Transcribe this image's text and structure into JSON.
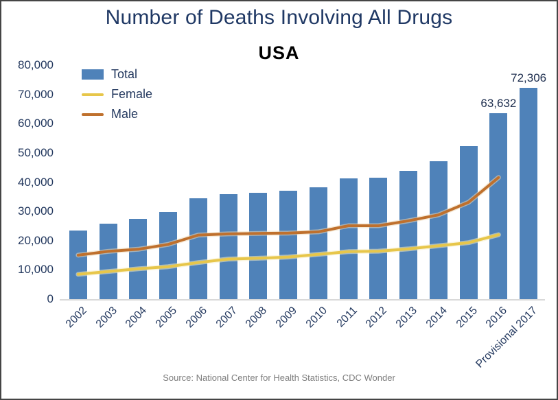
{
  "header": {
    "title": "Number of Deaths Involving All Drugs",
    "subtitle": "USA",
    "title_color": "#1f3864"
  },
  "footer": {
    "source": "Source: National Center for Health Statistics, CDC Wonder"
  },
  "colors": {
    "bar": "#4f82b9",
    "female_line": "#e7c64a",
    "female_halo": "#f6ecc2",
    "male_line": "#bf702d",
    "male_halo": "#ecd9b8",
    "axis_text": "#24395f",
    "axis_line": "#d9d9d9",
    "frame_border": "#454545"
  },
  "legend": {
    "position": "top-left-inside",
    "items": [
      {
        "label": "Total",
        "type": "bar",
        "color": "#4f82b9"
      },
      {
        "label": "Female",
        "type": "line",
        "color": "#e7c64a",
        "halo": "#f6ecc2"
      },
      {
        "label": "Male",
        "type": "line",
        "color": "#bf702d",
        "halo": "#ecd9b8"
      }
    ]
  },
  "chart_data": {
    "type": "bar",
    "title": "Number of Deaths Involving All Drugs",
    "subtitle": "USA",
    "xlabel": "",
    "ylabel": "",
    "ylim": [
      0,
      80000
    ],
    "y_tick_step": 10000,
    "y_tick_labels": [
      "0",
      "10,000",
      "20,000",
      "30,000",
      "40,000",
      "50,000",
      "60,000",
      "70,000",
      "80,000"
    ],
    "grid": false,
    "categories": [
      "2002",
      "2003",
      "2004",
      "2005",
      "2006",
      "2007",
      "2008",
      "2009",
      "2010",
      "2011",
      "2012",
      "2013",
      "2014",
      "2015",
      "2016",
      "Provisional 2017"
    ],
    "series": [
      {
        "name": "Total",
        "type": "bar",
        "color": "#4f82b9",
        "values": [
          23518,
          25785,
          27424,
          29813,
          34425,
          36010,
          36450,
          37004,
          38329,
          41340,
          41502,
          43982,
          47055,
          52404,
          63632,
          72306
        ]
      },
      {
        "name": "Female",
        "type": "line",
        "color": "#e7c64a",
        "values": [
          8489,
          9449,
          10371,
          11089,
          12511,
          13694,
          13982,
          14411,
          15323,
          16227,
          16390,
          17183,
          18243,
          19313,
          22025
        ]
      },
      {
        "name": "Male",
        "type": "line",
        "color": "#bf702d",
        "values": [
          15029,
          16336,
          17053,
          18724,
          21914,
          22316,
          22468,
          22593,
          23006,
          25113,
          25112,
          26799,
          28812,
          33091,
          41607
        ]
      }
    ],
    "point_labels": [
      {
        "category": "2016",
        "series": "Total",
        "text": "63,632"
      },
      {
        "category": "Provisional 2017",
        "series": "Total",
        "text": "72,306"
      }
    ]
  }
}
